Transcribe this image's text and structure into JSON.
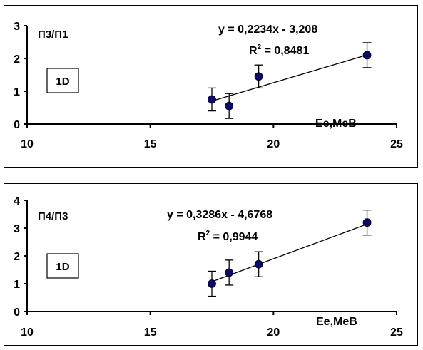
{
  "chart_data": [
    {
      "type": "scatter",
      "ylabel": "П3/П1",
      "xlabel": "Ee,MeB",
      "tag": "1D",
      "xlim": [
        10,
        25
      ],
      "ylim": [
        0,
        3
      ],
      "x_ticks": [
        10,
        15,
        20,
        25
      ],
      "y_ticks": [
        0,
        1,
        2,
        3
      ],
      "x_tick_labels": [
        "10",
        "15",
        "20",
        "25"
      ],
      "y_tick_labels": [
        "0",
        "1",
        "2",
        "3"
      ],
      "points": [
        {
          "x": 17.5,
          "y": 0.75,
          "err": 0.35
        },
        {
          "x": 18.2,
          "y": 0.55,
          "err": 0.38
        },
        {
          "x": 19.4,
          "y": 1.45,
          "err": 0.35
        },
        {
          "x": 23.8,
          "y": 2.1,
          "err": 0.38
        }
      ],
      "trendline": {
        "slope": 0.2234,
        "intercept": -3.208,
        "x_range": [
          17.5,
          23.8
        ]
      },
      "equation": "y = 0,2234x - 3,208",
      "r2_prefix": "R",
      "r2_sup": "2",
      "r2_value": " = 0,8481",
      "grid": false,
      "marker_color": "#0a0a6e"
    },
    {
      "type": "scatter",
      "ylabel": "П4/П3",
      "xlabel": "Ee,MeB",
      "tag": "1D",
      "xlim": [
        10,
        25
      ],
      "ylim": [
        0,
        4
      ],
      "x_ticks": [
        10,
        15,
        20,
        25
      ],
      "y_ticks": [
        0,
        1,
        2,
        3,
        4
      ],
      "x_tick_labels": [
        "10",
        "15",
        "20",
        "25"
      ],
      "y_tick_labels": [
        "0",
        "1",
        "2",
        "3",
        "4"
      ],
      "points": [
        {
          "x": 17.5,
          "y": 1.0,
          "err": 0.45
        },
        {
          "x": 18.2,
          "y": 1.4,
          "err": 0.45
        },
        {
          "x": 19.4,
          "y": 1.7,
          "err": 0.45
        },
        {
          "x": 23.8,
          "y": 3.2,
          "err": 0.45
        }
      ],
      "trendline": {
        "slope": 0.3286,
        "intercept": -4.6768,
        "x_range": [
          17.5,
          23.8
        ]
      },
      "equation": "y = 0,3286x - 4,6768",
      "r2_prefix": "R",
      "r2_sup": "2",
      "r2_value": " = 0,9944",
      "grid": false,
      "marker_color": "#0a0a6e"
    }
  ]
}
